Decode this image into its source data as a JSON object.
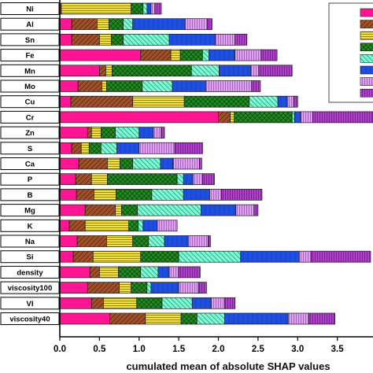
{
  "chart_data": {
    "type": "bar",
    "orientation": "horizontal",
    "stacked": true,
    "xlabel": "cumulated mean of absolute SHAP values",
    "xlim": [
      0.0,
      3.95
    ],
    "xticks": [
      "0.0",
      "0.5",
      "1.0",
      "1.5",
      "2.0",
      "2.5",
      "3.0",
      "3.5"
    ],
    "legend": "top-right",
    "segment_colors": [
      "#ff1493",
      "#a0522d",
      "#f0e040",
      "#228b22",
      "#7fffd4",
      "#1e4fe0",
      "#e0a0f0",
      "#b040c8"
    ],
    "categories": [
      "Ni",
      "Al",
      "Sn",
      "Fe",
      "Mn",
      "Mo",
      "Cu",
      "Cr",
      "Zn",
      "S",
      "Ca",
      "P",
      "B",
      "Mg",
      "K",
      "Na",
      "Si",
      "density",
      "viscosity100",
      "VI",
      "viscosity40"
    ],
    "values": [
      [
        0.02,
        0.0,
        0.88,
        0.15,
        0.05,
        0.05,
        0.05,
        0.08
      ],
      [
        0.15,
        0.32,
        0.15,
        0.18,
        0.12,
        0.66,
        0.28,
        0.06
      ],
      [
        0.15,
        0.35,
        0.15,
        0.15,
        0.58,
        0.58,
        0.25,
        0.15
      ],
      [
        1.02,
        0.38,
        0.12,
        0.28,
        0.08,
        0.33,
        0.33,
        0.2
      ],
      [
        0.5,
        0.08,
        0.08,
        1.0,
        0.35,
        0.4,
        0.1,
        0.42
      ],
      [
        0.23,
        0.3,
        0.06,
        0.45,
        0.38,
        0.42,
        0.58,
        0.11
      ],
      [
        0.14,
        0.78,
        0.65,
        0.82,
        0.36,
        0.12,
        0.08,
        0.05
      ],
      [
        2.0,
        0.15,
        0.05,
        0.73,
        0.03,
        0.08,
        0.15,
        0.76
      ],
      [
        0.35,
        0.05,
        0.12,
        0.18,
        0.3,
        0.18,
        0.1,
        0.04
      ],
      [
        0.15,
        0.12,
        0.1,
        0.15,
        0.2,
        0.28,
        0.45,
        0.35
      ],
      [
        0.24,
        0.36,
        0.16,
        0.16,
        0.35,
        0.16,
        0.33,
        0.03
      ],
      [
        0.2,
        0.2,
        0.2,
        0.88,
        0.08,
        0.12,
        0.12,
        0.15
      ],
      [
        0.21,
        0.22,
        0.28,
        0.45,
        0.4,
        0.33,
        0.15,
        0.51
      ],
      [
        0.32,
        0.38,
        0.08,
        0.2,
        0.8,
        0.44,
        0.23,
        0.05
      ],
      [
        0.12,
        0.2,
        0.55,
        0.12,
        0.06,
        0.18,
        0.25,
        0.0
      ],
      [
        0.22,
        0.37,
        0.33,
        0.2,
        0.2,
        0.3,
        0.25,
        0.03
      ],
      [
        0.17,
        0.25,
        0.6,
        0.48,
        0.78,
        0.74,
        0.15,
        0.75
      ],
      [
        0.38,
        0.12,
        0.24,
        0.28,
        0.22,
        0.14,
        0.12,
        0.27
      ],
      [
        0.35,
        0.4,
        0.15,
        0.2,
        0.05,
        0.35,
        0.25,
        0.1
      ],
      [
        0.4,
        0.15,
        0.42,
        0.32,
        0.38,
        0.24,
        0.17,
        0.13
      ],
      [
        0.63,
        0.45,
        0.45,
        0.2,
        0.35,
        0.8,
        0.26,
        0.33
      ]
    ]
  }
}
